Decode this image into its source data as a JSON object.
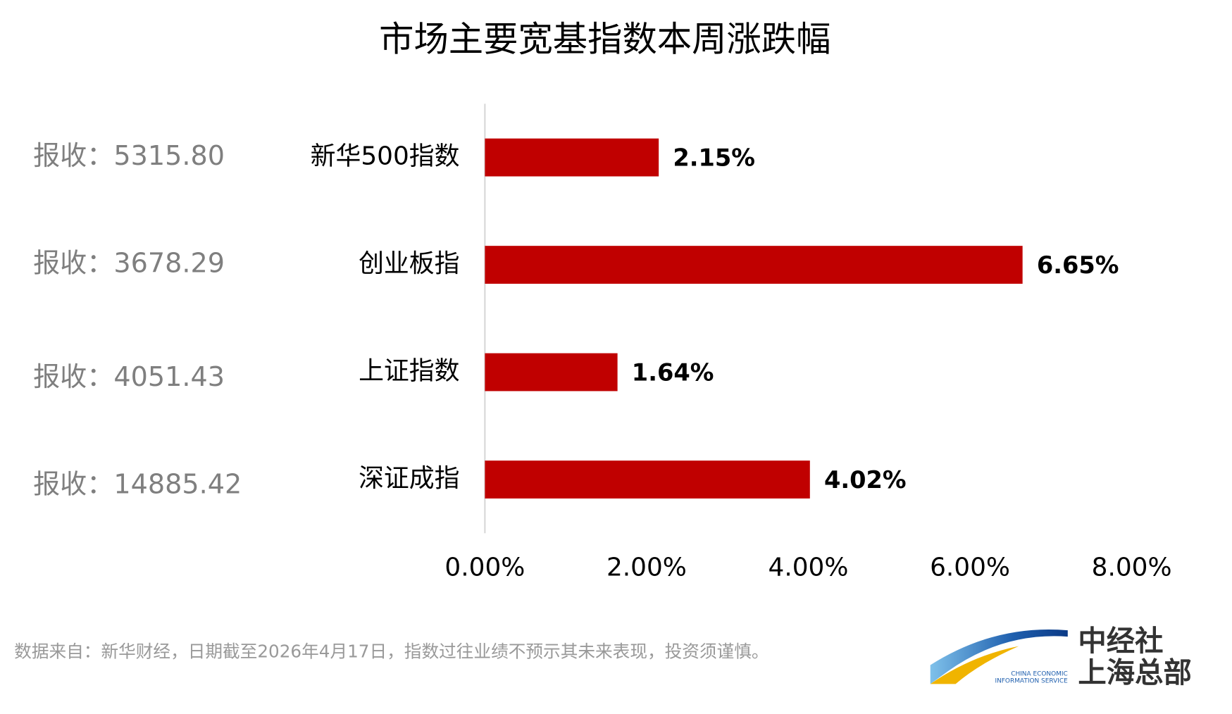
{
  "chart_data": {
    "type": "bar",
    "orientation": "horizontal",
    "title": "市场主要宽基指数本周涨跌幅",
    "categories": [
      "新华500指数",
      "创业板指",
      "上证指数",
      "深证成指"
    ],
    "values": [
      2.15,
      6.65,
      1.64,
      4.02
    ],
    "value_labels": [
      "2.15%",
      "6.65%",
      "1.64%",
      "4.02%"
    ],
    "annotations": [
      "报收：5315.80",
      "报收：3678.29",
      "报收：4051.43",
      "报收：14885.42"
    ],
    "color": "#c00000",
    "xlim": [
      0,
      8
    ],
    "xticks": [
      {
        "value": 0,
        "label": "0.00%"
      },
      {
        "value": 2,
        "label": "2.00%"
      },
      {
        "value": 4,
        "label": "4.00%"
      },
      {
        "value": 6,
        "label": "6.00%"
      },
      {
        "value": 8,
        "label": "8.00%"
      }
    ],
    "grid": false
  },
  "footnote": "数据来自：新华财经，日期截至2026年4月17日，指数过往业绩不预示其未来表现，投资须谨慎。",
  "logo": {
    "name": "中经社",
    "branch": "上海总部",
    "en_line1": "CHINA ECONOMIC",
    "en_line2": "INFORMATION SERVICE"
  }
}
